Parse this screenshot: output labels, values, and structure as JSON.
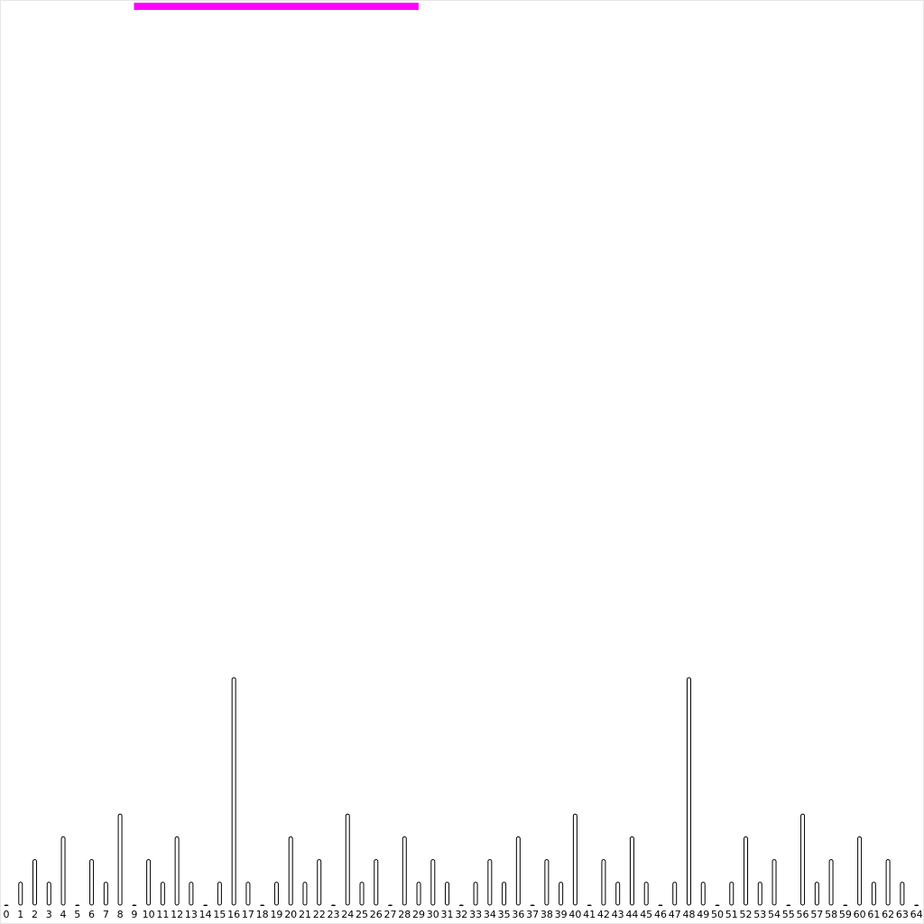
{
  "colors": {
    "background": "#ffffff",
    "bar_stroke": "#000000",
    "progress_bar": "#ff00ff"
  },
  "progress": {
    "start_fraction": 0.145,
    "end_fraction": 0.453
  },
  "chart_data": {
    "type": "bar",
    "title": "",
    "xlabel": "",
    "ylabel": "",
    "grid": false,
    "legend": "none",
    "ylim": [
      0,
      10
    ],
    "categories": [
      "0",
      "1",
      "2",
      "3",
      "4",
      "5",
      "6",
      "7",
      "8",
      "9",
      "10",
      "11",
      "12",
      "13",
      "14",
      "15",
      "16",
      "17",
      "18",
      "19",
      "20",
      "21",
      "22",
      "23",
      "24",
      "25",
      "26",
      "27",
      "28",
      "29",
      "30",
      "31",
      "32",
      "33",
      "34",
      "35",
      "36",
      "37",
      "38",
      "39",
      "40",
      "41",
      "42",
      "43",
      "44",
      "45",
      "46",
      "47",
      "48",
      "49",
      "50",
      "51",
      "52",
      "53",
      "54",
      "55",
      "56",
      "57",
      "58",
      "59",
      "60",
      "61",
      "62",
      "63",
      "64"
    ],
    "values": [
      0,
      1,
      2,
      1,
      3,
      0,
      2,
      1,
      4,
      0,
      2,
      1,
      3,
      1,
      0,
      1,
      10,
      1,
      0,
      1,
      3,
      1,
      2,
      0,
      4,
      1,
      2,
      0,
      3,
      1,
      2,
      1,
      0,
      1,
      2,
      1,
      3,
      0,
      2,
      1,
      4,
      0,
      2,
      1,
      3,
      1,
      0,
      1,
      10,
      1,
      0,
      1,
      3,
      1,
      2,
      0,
      4,
      1,
      2,
      0,
      3,
      1,
      2,
      1,
      0
    ]
  }
}
